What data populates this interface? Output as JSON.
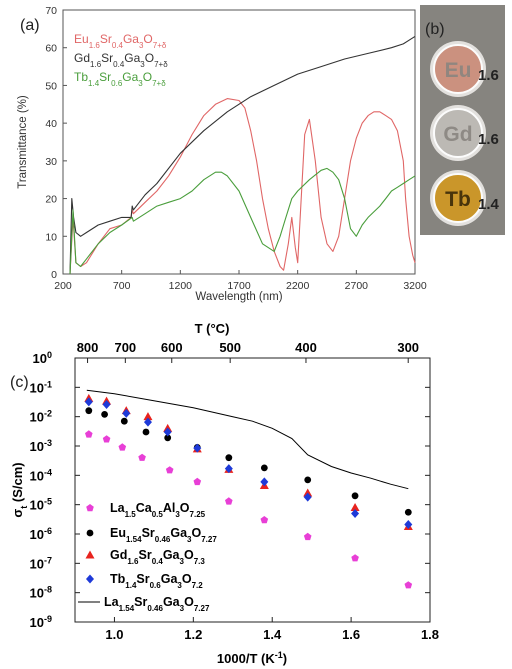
{
  "chart_data": [
    {
      "panel": "(a)",
      "type": "line",
      "xlabel": "Wavelength (nm)",
      "ylabel": "Transmittance (%)",
      "xlim": [
        200,
        3200
      ],
      "ylim": [
        0,
        70
      ],
      "xticks": [
        200,
        700,
        1200,
        1700,
        2200,
        2700,
        3200
      ],
      "yticks": [
        0,
        10,
        20,
        30,
        40,
        50,
        60,
        70
      ],
      "grid": false,
      "legend_position": "top-left",
      "series": [
        {
          "name": "Eu1.6Sr0.4Ga3O7+δ",
          "legend": {
            "el": "Eu",
            "n1": "1.6",
            "mid": "Sr",
            "n2": "0.4",
            "tail": "Ga",
            "n3": "3",
            "o": "O",
            "n4": "7+δ"
          },
          "color": "#e06666",
          "x": [
            260,
            285,
            310,
            350,
            400,
            500,
            600,
            700,
            780,
            790,
            800,
            900,
            1000,
            1100,
            1200,
            1300,
            1400,
            1500,
            1600,
            1700,
            1750,
            1800,
            1850,
            1900,
            1950,
            2000,
            2050,
            2080,
            2120,
            2150,
            2180,
            2200,
            2230,
            2260,
            2300,
            2350,
            2400,
            2450,
            2500,
            2550,
            2600,
            2650,
            2700,
            2750,
            2800,
            2850,
            2900,
            2950,
            3000,
            3050,
            3100,
            3120,
            3150,
            3180,
            3200
          ],
          "y": [
            0,
            15,
            3,
            2,
            3,
            8,
            12,
            13,
            15,
            17,
            16,
            19,
            22,
            26,
            31,
            37,
            42,
            45,
            46.5,
            46,
            44,
            38,
            30,
            20,
            12,
            6,
            2,
            1,
            8,
            15,
            7,
            3,
            20,
            37,
            41,
            30,
            15,
            8,
            6,
            10,
            20,
            30,
            36,
            40,
            42,
            43,
            43,
            42,
            41,
            38,
            30,
            20,
            10,
            5,
            3
          ]
        },
        {
          "name": "Gd1.6Sr0.4Ga3O7+δ",
          "legend": {
            "el": "Gd",
            "n1": "1.6",
            "mid": "Sr",
            "n2": "0.4",
            "tail": "Ga",
            "n3": "3",
            "o": "O",
            "n4": "7+δ"
          },
          "color": "#333333",
          "x": [
            260,
            275,
            290,
            310,
            350,
            400,
            500,
            600,
            700,
            780,
            790,
            800,
            900,
            1000,
            1200,
            1400,
            1600,
            1800,
            2000,
            2200,
            2400,
            2600,
            2800,
            3000,
            3100,
            3150,
            3200
          ],
          "y": [
            0,
            20,
            15,
            11,
            10,
            11,
            13,
            14,
            15,
            15,
            18,
            17,
            21,
            24,
            32,
            38,
            43,
            47,
            50,
            53,
            55,
            57,
            58.5,
            60,
            61,
            62,
            63
          ]
        },
        {
          "name": "Tb1.4Sr0.6Ga3O7+δ",
          "legend": {
            "el": "Tb",
            "n1": "1.4",
            "mid": "Sr",
            "n2": "0.6",
            "tail": "Ga",
            "n3": "3",
            "o": "O",
            "n4": "7+δ"
          },
          "color": "#4a9e3c",
          "x": [
            260,
            285,
            310,
            350,
            400,
            500,
            600,
            700,
            790,
            800,
            900,
            1000,
            1100,
            1200,
            1300,
            1400,
            1500,
            1550,
            1600,
            1700,
            1800,
            1900,
            2000,
            2050,
            2100,
            2150,
            2200,
            2300,
            2400,
            2450,
            2500,
            2550,
            2600,
            2650,
            2700,
            2750,
            2800,
            2900,
            2950,
            3000,
            3050,
            3100,
            3150,
            3200
          ],
          "y": [
            0,
            17,
            3,
            2,
            4,
            8,
            11,
            13,
            15,
            14,
            16,
            18,
            19,
            20,
            22,
            25,
            27,
            27,
            26,
            22,
            15,
            8,
            6,
            10,
            15,
            20,
            22,
            25,
            27.5,
            28,
            27,
            25,
            20,
            12,
            10,
            13,
            15,
            18,
            20,
            22,
            23,
            24,
            25,
            26
          ]
        }
      ]
    },
    {
      "panel": "(c)",
      "type": "scatter",
      "xlabel": "1000/T (K-1)",
      "xlabel_parts": {
        "main": "1000/T (K",
        "sup": "-1",
        "end": ")"
      },
      "ylabel": "σt (S/cm)",
      "ylabel_parts": {
        "sym": "σ",
        "sub": "t",
        "unit": " (S/cm)"
      },
      "top_axis_label": "T (°C)",
      "top_ticks": [
        "800",
        "700",
        "600",
        "500",
        "400",
        "300"
      ],
      "top_ticks_celsius": [
        800,
        700,
        600,
        500,
        400,
        300
      ],
      "xlim": [
        0.9,
        1.8
      ],
      "xticks": [
        1.0,
        1.2,
        1.4,
        1.6,
        1.8
      ],
      "xtick_labels": [
        "1.0",
        "1.2",
        "1.4",
        "1.6",
        "1.8"
      ],
      "ylim_exponent": [
        -9,
        0
      ],
      "ytick_exponents": [
        0,
        -1,
        -2,
        -3,
        -4,
        -5,
        -6,
        -7,
        -8,
        -9
      ],
      "ytick_base": "10",
      "log_y": true,
      "legend_position": "bottom-left",
      "series": [
        {
          "name": "La1.5Ca0.5Al3O7.25",
          "legend": {
            "a": "La",
            "na": "1.5",
            "b": "Ca",
            "nb": "0.5",
            "c": "Al",
            "nc": "3",
            "o": "O",
            "no": "7.25"
          },
          "marker": "pentagon",
          "color": "#e83fd6",
          "x": [
            0.935,
            0.98,
            1.02,
            1.07,
            1.14,
            1.21,
            1.29,
            1.38,
            1.49,
            1.61,
            1.745
          ],
          "y": [
            0.0025,
            0.0017,
            0.0009,
            0.0004,
            0.00015,
            6e-05,
            1.3e-05,
            3e-06,
            8e-07,
            1.5e-07,
            1.8e-08
          ]
        },
        {
          "name": "Eu1.54Sr0.46Ga3O7.27",
          "legend": {
            "a": "Eu",
            "na": "1.54",
            "b": "Sr",
            "nb": "0.46",
            "c": "Ga",
            "nc": "3",
            "o": "O",
            "no": "7.27"
          },
          "marker": "circle",
          "color": "#000000",
          "x": [
            0.935,
            0.975,
            1.025,
            1.08,
            1.135,
            1.21,
            1.29,
            1.38,
            1.49,
            1.61,
            1.745
          ],
          "y": [
            0.016,
            0.012,
            0.007,
            0.003,
            0.0019,
            0.0009,
            0.0004,
            0.00018,
            7e-05,
            2e-05,
            5.5e-06
          ]
        },
        {
          "name": "Gd1.6Sr0.4Ga3O7.3",
          "legend": {
            "a": "Gd",
            "na": "1.6",
            "b": "Sr",
            "nb": "0.4",
            "c": "Ga",
            "nc": "3",
            "o": "O",
            "no": "7.3"
          },
          "marker": "triangle",
          "color": "#e8231e",
          "x": [
            0.935,
            0.98,
            1.03,
            1.085,
            1.135,
            1.21,
            1.29,
            1.38,
            1.49,
            1.61,
            1.745
          ],
          "y": [
            0.042,
            0.034,
            0.016,
            0.01,
            0.004,
            0.0008,
            0.00016,
            4.5e-05,
            2.5e-05,
            8e-06,
            1.8e-06
          ]
        },
        {
          "name": "Tb1.4Sr0.6Ga3O7.2",
          "legend": {
            "a": "Tb",
            "na": "1.4",
            "b": "Sr",
            "nb": "0.6",
            "c": "Ga",
            "nc": "3",
            "o": "O",
            "no": "7.2"
          },
          "marker": "diamond",
          "color": "#1e3ad8",
          "x": [
            0.935,
            0.98,
            1.03,
            1.085,
            1.135,
            1.21,
            1.29,
            1.38,
            1.49,
            1.61,
            1.745
          ],
          "y": [
            0.032,
            0.026,
            0.013,
            0.0065,
            0.003,
            0.00085,
            0.00017,
            6e-05,
            1.8e-05,
            5e-06,
            2.1e-06
          ]
        },
        {
          "name": "La1.54Sr0.46Ga3O7.27",
          "legend": {
            "a": "La",
            "na": "1.54",
            "b": "Sr",
            "nb": "0.46",
            "c": "Ga",
            "nc": "3",
            "o": "O",
            "no": "7.27"
          },
          "marker": "line",
          "color": "#000000",
          "x": [
            0.93,
            1.0,
            1.1,
            1.2,
            1.3,
            1.35,
            1.4,
            1.45,
            1.49,
            1.55,
            1.6,
            1.65,
            1.7,
            1.745
          ],
          "y": [
            0.08,
            0.06,
            0.035,
            0.02,
            0.01,
            0.007,
            0.004,
            0.0018,
            0.0005,
            0.0002,
            0.00012,
            8e-05,
            5e-05,
            3.5e-05
          ]
        }
      ]
    }
  ],
  "photo": {
    "label": "(b)",
    "samples": [
      {
        "letters": "Eu",
        "value": "1.6",
        "color": "#c98b77"
      },
      {
        "letters": "Gd",
        "value": "1.6",
        "color": "#b9b6b1"
      },
      {
        "letters": "Tb",
        "value": "1.4",
        "color": "#c8901b"
      }
    ]
  }
}
